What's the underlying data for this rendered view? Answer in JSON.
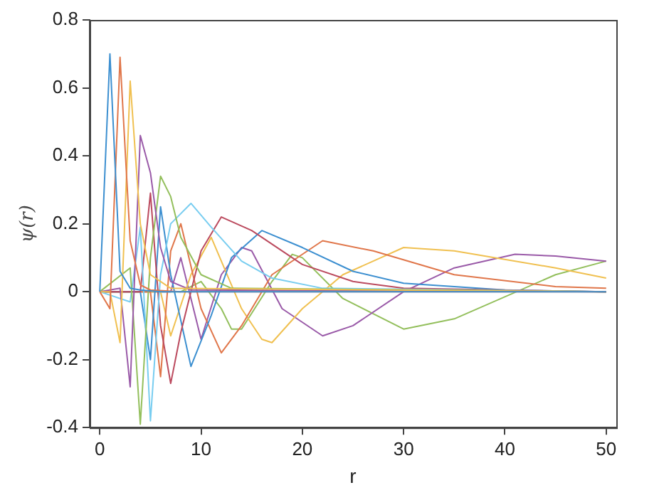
{
  "chart_data": {
    "type": "line",
    "xlabel": "r",
    "ylabel": "ψ(r)",
    "xlim": [
      -1,
      51
    ],
    "xticks": [
      0,
      10,
      20,
      30,
      40,
      50
    ],
    "ylim": [
      -0.4,
      0.8
    ],
    "yticks": [
      -0.4,
      -0.2,
      0,
      0.2,
      0.4,
      0.6,
      0.8
    ],
    "grid": false,
    "legend": false,
    "marker": "none",
    "line_style": "solid",
    "series": [
      {
        "color": "#3c8fd0",
        "x": [
          0,
          1,
          2,
          3,
          4,
          6,
          50
        ],
        "values": [
          0,
          0.7,
          0.06,
          0.01,
          0.005,
          0,
          0
        ]
      },
      {
        "color": "#e0764a",
        "x": [
          0,
          1,
          2,
          3,
          4,
          5,
          8,
          50
        ],
        "values": [
          0,
          -0.05,
          0.69,
          0.15,
          0.02,
          0.005,
          0,
          0
        ]
      },
      {
        "color": "#f0c050",
        "x": [
          0,
          1,
          2,
          3,
          4,
          5,
          7,
          50
        ],
        "values": [
          0,
          0,
          -0.15,
          0.62,
          0.2,
          0.05,
          0.01,
          0
        ]
      },
      {
        "color": "#9a5aa8",
        "x": [
          0,
          2,
          3,
          4,
          5,
          6,
          7,
          9,
          50
        ],
        "values": [
          0,
          0.01,
          -0.28,
          0.46,
          0.35,
          0.13,
          0.03,
          0.005,
          0
        ]
      },
      {
        "color": "#93bf5c",
        "x": [
          0,
          3,
          4,
          5,
          6,
          7,
          8,
          10,
          13,
          50
        ],
        "values": [
          0,
          0.07,
          -0.39,
          0.1,
          0.34,
          0.28,
          0.16,
          0.05,
          0.01,
          0
        ]
      },
      {
        "color": "#78cdf0",
        "x": [
          0,
          3,
          4,
          5,
          6,
          7,
          9,
          11,
          14,
          17,
          22,
          50
        ],
        "values": [
          0,
          -0.03,
          0.19,
          -0.38,
          0.05,
          0.2,
          0.26,
          0.19,
          0.09,
          0.04,
          0.01,
          0
        ]
      },
      {
        "color": "#bb4a5e",
        "x": [
          0,
          4,
          5,
          6,
          7,
          8,
          10,
          12,
          15,
          20,
          25,
          30,
          50
        ],
        "values": [
          0,
          0,
          0.29,
          -0.1,
          -0.27,
          -0.12,
          0.12,
          0.22,
          0.18,
          0.08,
          0.03,
          0.01,
          0
        ]
      },
      {
        "color": "#3c8fd0",
        "x": [
          0,
          4,
          5,
          6,
          7,
          9,
          11,
          13,
          16,
          20,
          25,
          30,
          40,
          50
        ],
        "values": [
          0,
          0,
          -0.2,
          0.25,
          0.05,
          -0.22,
          -0.07,
          0.1,
          0.18,
          0.13,
          0.06,
          0.025,
          0.005,
          0
        ]
      },
      {
        "color": "#e0764a",
        "x": [
          0,
          5,
          6,
          7,
          8,
          10,
          12,
          14,
          17,
          22,
          27,
          35,
          45,
          50
        ],
        "values": [
          0,
          0,
          -0.25,
          0.12,
          0.2,
          -0.05,
          -0.18,
          -0.1,
          0.05,
          0.15,
          0.12,
          0.05,
          0.015,
          0.01
        ]
      },
      {
        "color": "#f0c050",
        "x": [
          0,
          6,
          7,
          9,
          11,
          14,
          16,
          17,
          20,
          24,
          30,
          35,
          45,
          50
        ],
        "values": [
          0,
          0,
          -0.13,
          0.05,
          0.16,
          -0.05,
          -0.14,
          -0.15,
          -0.05,
          0.05,
          0.13,
          0.12,
          0.07,
          0.04
        ]
      },
      {
        "color": "#9a5aa8",
        "x": [
          0,
          7,
          8,
          10,
          12,
          14,
          15,
          18,
          22,
          25,
          30,
          35,
          41,
          45,
          50
        ],
        "values": [
          0,
          0,
          0.1,
          -0.14,
          0.05,
          0.13,
          0.12,
          -0.05,
          -0.13,
          -0.1,
          0,
          0.07,
          0.11,
          0.105,
          0.09
        ]
      },
      {
        "color": "#93bf5c",
        "x": [
          0,
          8,
          10,
          12,
          13,
          14,
          17,
          19,
          20,
          24,
          30,
          35,
          45,
          50
        ],
        "values": [
          0,
          0,
          0.03,
          -0.05,
          -0.11,
          -0.11,
          0.03,
          0.11,
          0.1,
          -0.02,
          -0.11,
          -0.08,
          0.05,
          0.09
        ]
      }
    ]
  }
}
